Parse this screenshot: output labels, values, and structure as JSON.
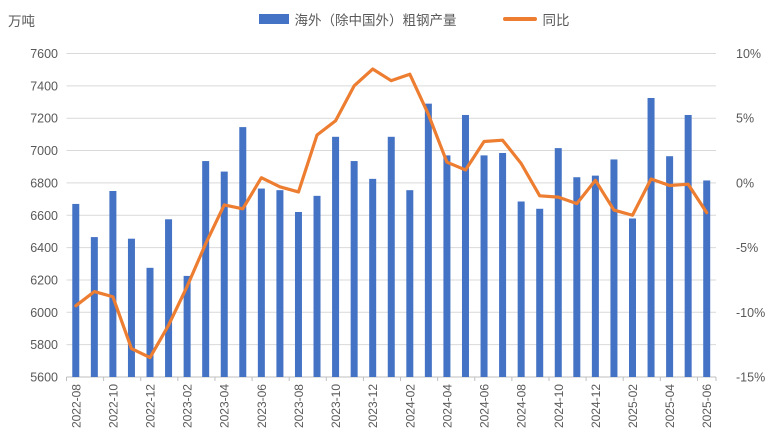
{
  "unit_label": "万吨",
  "legend": [
    {
      "label": "海外（除中国外）粗钢产量",
      "color": "#4472C4",
      "type": "bar"
    },
    {
      "label": "同比",
      "color": "#ED7D31",
      "type": "line"
    }
  ],
  "colors": {
    "bar": "#4472C4",
    "line": "#ED7D31",
    "gridline": "#D9D9D9",
    "axis_line": "#BFBFBF",
    "axis_text": "#595959"
  },
  "chart_data": {
    "type": "combo",
    "categories": [
      "2022-08",
      "2022-09",
      "2022-10",
      "2022-11",
      "2022-12",
      "2023-01",
      "2023-02",
      "2023-03",
      "2023-04",
      "2023-05",
      "2023-06",
      "2023-07",
      "2023-08",
      "2023-09",
      "2023-10",
      "2023-11",
      "2023-12",
      "2024-01",
      "2024-02",
      "2024-03",
      "2024-04",
      "2024-05",
      "2024-06",
      "2024-07",
      "2024-08",
      "2024-09",
      "2024-10",
      "2024-11",
      "2024-12",
      "2025-01",
      "2025-02",
      "2025-03",
      "2025-04",
      "2025-05",
      "2025-06"
    ],
    "series": [
      {
        "name": "海外（除中国外）粗钢产量",
        "type": "bar",
        "axis": "left",
        "unit": "万吨",
        "color": "#4472C4",
        "values": [
          6670,
          6465,
          6750,
          6455,
          6275,
          6575,
          6225,
          6935,
          6870,
          7145,
          6765,
          6755,
          6620,
          6720,
          7085,
          6935,
          6825,
          7085,
          6755,
          7290,
          6970,
          7220,
          6970,
          6985,
          6685,
          6640,
          7015,
          6835,
          6845,
          6945,
          6580,
          7325,
          6965,
          7220,
          6815
        ]
      },
      {
        "name": "同比",
        "type": "line",
        "axis": "right",
        "unit": "%",
        "color": "#ED7D31",
        "values": [
          -9.5,
          -8.4,
          -8.8,
          -12.8,
          -13.5,
          -11.0,
          -8.0,
          -4.7,
          -1.7,
          -2.0,
          0.4,
          -0.3,
          -0.7,
          3.7,
          4.8,
          7.5,
          8.8,
          7.9,
          8.4,
          5.3,
          1.6,
          1.0,
          3.2,
          3.3,
          1.5,
          -1.0,
          -1.1,
          -1.6,
          0.2,
          -2.1,
          -2.5,
          0.3,
          -0.2,
          -0.1,
          -2.3
        ]
      }
    ],
    "left_axis": {
      "title": "万吨",
      "min": 5600,
      "max": 7600,
      "step": 200,
      "tick_labels": [
        "7600",
        "7400",
        "7200",
        "7000",
        "6800",
        "6600",
        "6400",
        "6200",
        "6000",
        "5800",
        "5600"
      ]
    },
    "right_axis": {
      "min": -15,
      "max": 10,
      "step": 5,
      "tick_labels": [
        "10%",
        "5%",
        "0%",
        "-5%",
        "-10%",
        "-15%"
      ]
    },
    "x_axis": {
      "label_interval": 2,
      "labels_shown": [
        "2022-08",
        "2022-10",
        "2022-12",
        "2023-02",
        "2023-04",
        "2023-06",
        "2023-08",
        "2023-10",
        "2023-12",
        "2024-02",
        "2024-04",
        "2024-06",
        "2024-08",
        "2024-10",
        "2024-12",
        "2025-02",
        "2025-04",
        "2025-06"
      ]
    },
    "grid": true,
    "legend_position": "top"
  }
}
